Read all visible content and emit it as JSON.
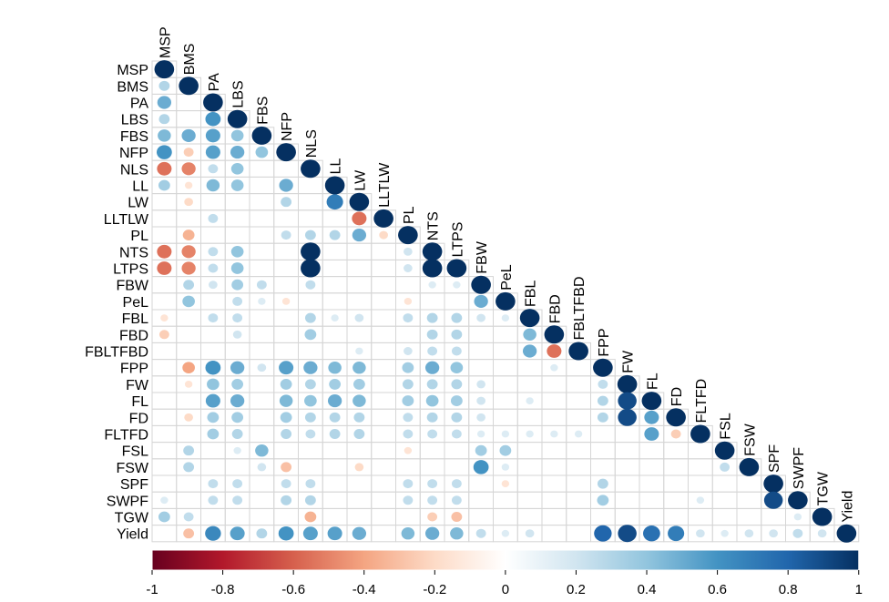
{
  "chart_data": {
    "type": "heatmap",
    "subtype": "correlation-matrix-lower-triangle",
    "variables": [
      "MSP",
      "BMS",
      "PA",
      "LBS",
      "FBS",
      "NFP",
      "NLS",
      "LL",
      "LW",
      "LLTLW",
      "PL",
      "NTS",
      "LTPS",
      "FBW",
      "PeL",
      "FBL",
      "FBD",
      "FBLTFBD",
      "FPP",
      "FW",
      "FL",
      "FD",
      "FLTFD",
      "FSL",
      "FSW",
      "SPF",
      "SWPF",
      "TGW",
      "Yield"
    ],
    "correlations": [
      [],
      [
        0.3
      ],
      [
        0.5,
        0
      ],
      [
        0.3,
        0,
        0.6
      ],
      [
        0.45,
        0.5,
        0.55,
        0.4
      ],
      [
        0.6,
        -0.25,
        0.55,
        0.5,
        0.4
      ],
      [
        -0.55,
        -0.5,
        0.25,
        0.4,
        0,
        0
      ],
      [
        0.35,
        -0.15,
        0.45,
        0.4,
        0,
        0.5,
        0
      ],
      [
        0,
        -0.2,
        0,
        0,
        0,
        0.3,
        0,
        0.7
      ],
      [
        0,
        0,
        0.25,
        0,
        0,
        0,
        0,
        0,
        -0.55
      ],
      [
        0,
        -0.35,
        0,
        0,
        0,
        0.25,
        0.3,
        0.3,
        0.5,
        -0.2
      ],
      [
        -0.55,
        -0.5,
        0.25,
        0.4,
        0,
        0,
        1.0,
        0,
        0,
        0,
        0.2
      ],
      [
        -0.55,
        -0.5,
        0.25,
        0.4,
        0,
        0,
        1.0,
        0,
        0,
        0,
        0.2,
        1.0
      ],
      [
        0,
        0.3,
        0.2,
        0.35,
        0.25,
        0,
        0.25,
        0,
        0,
        0,
        0,
        0.15,
        0.15
      ],
      [
        0,
        0.4,
        0,
        0.25,
        0.15,
        -0.15,
        0,
        0,
        0,
        0,
        -0.15,
        0,
        0,
        0.5
      ],
      [
        -0.15,
        0,
        0.25,
        0.25,
        0,
        0,
        0.3,
        0.15,
        0.2,
        0,
        0.25,
        0.3,
        0.3,
        0.2,
        0.15
      ],
      [
        -0.25,
        0,
        0,
        0.2,
        0,
        0,
        0.35,
        0,
        0,
        0,
        0,
        0.3,
        0.3,
        0,
        0,
        0.45
      ],
      [
        0,
        0,
        0,
        0,
        0,
        0,
        0,
        0,
        0.15,
        0,
        0.2,
        0.25,
        0.25,
        0,
        0,
        0.5,
        -0.55
      ],
      [
        0,
        -0.4,
        0.6,
        0.5,
        0.2,
        0.55,
        0.5,
        0.45,
        0.45,
        0,
        0.35,
        0.5,
        0.4,
        0,
        0,
        0,
        0.15,
        0
      ],
      [
        0,
        -0.15,
        0.4,
        0.35,
        0,
        0.35,
        0.3,
        0.35,
        0.35,
        0,
        0.3,
        0.3,
        0.3,
        0.2,
        0,
        0,
        0,
        0,
        0.25
      ],
      [
        0,
        0,
        0.55,
        0.5,
        0,
        0.45,
        0.4,
        0.5,
        0.45,
        0,
        0.35,
        0.4,
        0.35,
        0.2,
        0,
        0.15,
        0,
        0,
        0.3,
        0.9
      ],
      [
        0,
        -0.2,
        0.35,
        0.35,
        0,
        0.35,
        0.3,
        0.3,
        0.3,
        0,
        0.25,
        0.3,
        0.3,
        0.2,
        0,
        0,
        0,
        0,
        0.3,
        0.9,
        0.55
      ],
      [
        0,
        0,
        0.35,
        0.3,
        0,
        0.3,
        0.25,
        0.3,
        0.3,
        0,
        0.25,
        0.25,
        0.25,
        0.15,
        0.15,
        0.15,
        0.15,
        0.15,
        0,
        0,
        0.55,
        -0.25
      ],
      [
        0,
        0.3,
        0,
        0.15,
        0.45,
        0,
        0,
        0,
        0,
        0,
        -0.15,
        0,
        0,
        0.35,
        0.35,
        0,
        0,
        0,
        0,
        0,
        0,
        0,
        0
      ],
      [
        0,
        0.3,
        0,
        0,
        0.2,
        -0.3,
        0,
        0,
        -0.2,
        0,
        0,
        0,
        0,
        0.6,
        0.15,
        0,
        0,
        0,
        0,
        0,
        0,
        0,
        0,
        0.25
      ],
      [
        0,
        0,
        0.25,
        0.25,
        0,
        0.25,
        0.25,
        0,
        0,
        0,
        0.25,
        0.25,
        0.25,
        0,
        -0.15,
        0,
        0,
        0,
        0.3,
        0,
        0,
        0,
        0,
        0,
        0
      ],
      [
        0.15,
        0,
        0.25,
        0.25,
        0,
        0.3,
        0.3,
        0,
        0,
        0,
        0.25,
        0.25,
        0.25,
        0,
        0,
        0,
        0,
        0,
        0.35,
        0,
        0,
        0,
        0.15,
        0,
        0,
        0.9
      ],
      [
        0.35,
        0.25,
        0,
        0,
        0,
        0,
        -0.35,
        0,
        0,
        0,
        0,
        -0.25,
        -0.3,
        0,
        0,
        0,
        0,
        0,
        0,
        0,
        0,
        0,
        0,
        0,
        0,
        0,
        0.15
      ],
      [
        0,
        -0.3,
        0.65,
        0.55,
        0.3,
        0.6,
        0.55,
        0.55,
        0.5,
        0,
        0.45,
        0.5,
        0.45,
        0.25,
        0.15,
        0.2,
        0,
        0,
        0.8,
        0.9,
        0.75,
        0.7,
        0.2,
        0.15,
        0.2,
        0.2,
        0.25,
        0.2
      ]
    ],
    "colorbar": {
      "min": -1,
      "max": 1,
      "ticks": [
        "-1",
        "-0.8",
        "-0.6",
        "-0.4",
        "-0.2",
        "0",
        "0.2",
        "0.4",
        "0.6",
        "0.8",
        "1"
      ],
      "colors": [
        "#67001f",
        "#b2182b",
        "#d6604d",
        "#f4a582",
        "#fddbc7",
        "#ffffff",
        "#d1e5f0",
        "#92c5de",
        "#4393c3",
        "#2166ac",
        "#053061"
      ]
    }
  }
}
